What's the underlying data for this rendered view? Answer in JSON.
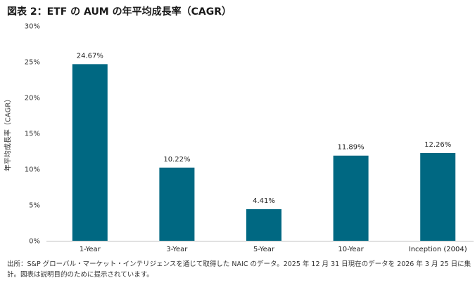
{
  "title": "図表 2：ETF の AUM の年平均成長率（CAGR）",
  "note": "出所：S&P グローバル・マーケット・インテリジェンスを通じて取得した NAIC のデータ。2025 年 12 月 31 日現在のデータを 2026 年 3 月 25 日に集計。図表は説明目的のために提示されています。",
  "colors": {
    "bar": "#006882",
    "axis": "#bfbfbf"
  },
  "chart_data": {
    "type": "bar",
    "categories": [
      "1-Year",
      "3-Year",
      "5-Year",
      "10-Year",
      "Inception (2004)"
    ],
    "values": [
      24.67,
      10.22,
      4.41,
      11.89,
      12.26
    ],
    "data_labels": [
      "24.67%",
      "10.22%",
      "4.41%",
      "11.89%",
      "12.26%"
    ],
    "title": "図表 2：ETF の AUM の年平均成長率（CAGR）",
    "xlabel": "",
    "ylabel": "年平均成長率（CAGR）",
    "ylim": [
      0,
      30
    ],
    "yticks": [
      0,
      5,
      10,
      15,
      20,
      25,
      30
    ],
    "ytick_labels": [
      "0%",
      "5%",
      "10%",
      "15%",
      "20%",
      "25%",
      "30%"
    ],
    "grid": false,
    "legend": "none"
  }
}
